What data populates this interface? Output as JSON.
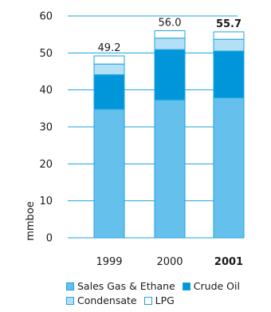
{
  "chart_data": {
    "type": "bar",
    "stacked": true,
    "categories": [
      "1999",
      "2000",
      "2001"
    ],
    "category_bold": [
      false,
      false,
      true
    ],
    "ylabel": "mmboe",
    "ylim": [
      0,
      60
    ],
    "yticks": [
      0,
      10,
      20,
      30,
      40,
      50,
      60
    ],
    "series": [
      {
        "name": "Sales Gas & Ethane",
        "color": "#66c0ec",
        "values": [
          34.8,
          37.3,
          37.9
        ]
      },
      {
        "name": "Crude Oil",
        "color": "#0096d9",
        "values": [
          9.3,
          13.6,
          12.6
        ]
      },
      {
        "name": "Condensate",
        "color": "#b3e0f5",
        "values": [
          2.9,
          3.1,
          3.2
        ]
      },
      {
        "name": "LPG",
        "color": "#ffffff",
        "values": [
          2.2,
          2.0,
          2.0
        ]
      }
    ],
    "totals": [
      "49.2",
      "56.0",
      "55.7"
    ],
    "total_bold": [
      false,
      false,
      true
    ],
    "grid": "left stubs only",
    "legend_position": "bottom"
  }
}
